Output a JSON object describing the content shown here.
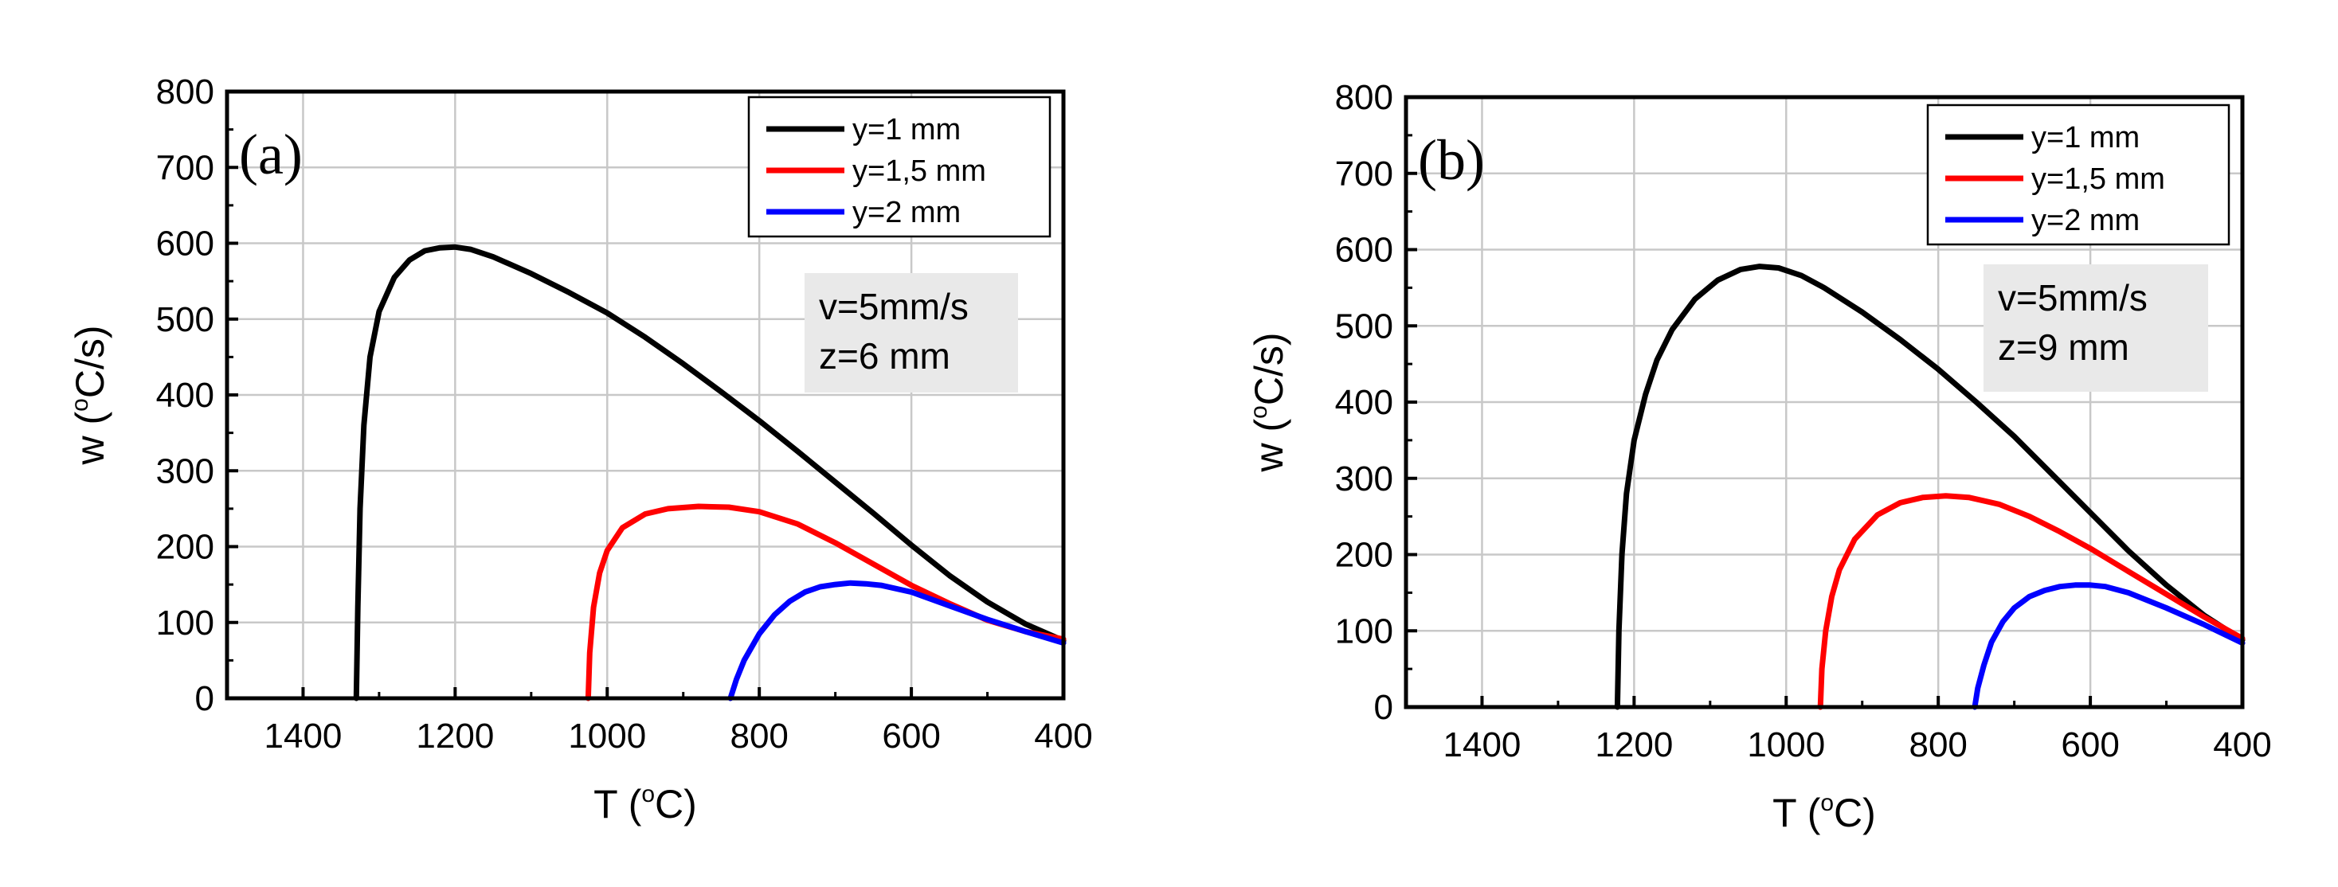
{
  "chart_data": [
    {
      "type": "line",
      "panel_label": "(a)",
      "xlabel": "T (",
      "xlabel_sup": "o",
      "xlabel_unit": "C)",
      "ylabel": "w (",
      "ylabel_sup": "o",
      "ylabel_unit": "C/s)",
      "xlim": [
        1500,
        400
      ],
      "ylim": [
        0,
        800
      ],
      "xticks": [
        "1400",
        "1200",
        "1000",
        "800",
        "600",
        "400"
      ],
      "xtick_values": [
        1400,
        1200,
        1000,
        800,
        600,
        400
      ],
      "yticks": [
        "0",
        "100",
        "200",
        "300",
        "400",
        "500",
        "600",
        "700",
        "800"
      ],
      "ytick_values": [
        0,
        100,
        200,
        300,
        400,
        500,
        600,
        700,
        800
      ],
      "grid": true,
      "legend_position": "top-right",
      "annotation": [
        "v=5mm/s",
        "z=6 mm"
      ],
      "series": [
        {
          "name": "y=1 mm",
          "color": "#000000",
          "x": [
            1330,
            1328,
            1325,
            1320,
            1312,
            1300,
            1280,
            1260,
            1240,
            1220,
            1200,
            1180,
            1150,
            1100,
            1050,
            1000,
            950,
            900,
            850,
            800,
            750,
            700,
            650,
            600,
            550,
            500,
            450,
            400
          ],
          "y": [
            0,
            120,
            250,
            360,
            450,
            510,
            555,
            578,
            590,
            594,
            595,
            592,
            582,
            560,
            535,
            508,
            476,
            441,
            404,
            366,
            326,
            285,
            244,
            202,
            162,
            127,
            98,
            76
          ]
        },
        {
          "name": "y=1,5 mm",
          "color": "#ff0000",
          "x": [
            1025,
            1023,
            1018,
            1010,
            1000,
            980,
            950,
            920,
            880,
            840,
            800,
            750,
            700,
            650,
            600,
            550,
            500,
            450,
            400
          ],
          "y": [
            0,
            60,
            120,
            165,
            195,
            225,
            243,
            250,
            253,
            252,
            246,
            230,
            205,
            177,
            149,
            125,
            103,
            88,
            78
          ]
        },
        {
          "name": "y=2 mm",
          "color": "#0000ff",
          "x": [
            838,
            830,
            820,
            800,
            780,
            760,
            740,
            720,
            700,
            680,
            660,
            640,
            600,
            550,
            500,
            450,
            400
          ],
          "y": [
            0,
            25,
            50,
            85,
            110,
            128,
            140,
            147,
            150,
            152,
            151,
            149,
            140,
            122,
            104,
            88,
            73
          ]
        }
      ]
    },
    {
      "type": "line",
      "panel_label": "(b)",
      "xlabel": "T (",
      "xlabel_sup": "o",
      "xlabel_unit": "C)",
      "ylabel": "w (",
      "ylabel_sup": "o",
      "ylabel_unit": "C/s)",
      "xlim": [
        1500,
        400
      ],
      "ylim": [
        0,
        800
      ],
      "xticks": [
        "1400",
        "1200",
        "1000",
        "800",
        "600",
        "400"
      ],
      "xtick_values": [
        1400,
        1200,
        1000,
        800,
        600,
        400
      ],
      "yticks": [
        "0",
        "100",
        "200",
        "300",
        "400",
        "500",
        "600",
        "700",
        "800"
      ],
      "ytick_values": [
        0,
        100,
        200,
        300,
        400,
        500,
        600,
        700,
        800
      ],
      "grid": true,
      "legend_position": "top-right",
      "annotation": [
        "v=5mm/s",
        "z=9 mm"
      ],
      "series": [
        {
          "name": "y=1 mm",
          "color": "#000000",
          "x": [
            1222,
            1220,
            1216,
            1210,
            1200,
            1185,
            1170,
            1150,
            1120,
            1090,
            1060,
            1035,
            1010,
            980,
            950,
            900,
            850,
            800,
            750,
            700,
            650,
            600,
            550,
            500,
            450,
            400
          ],
          "y": [
            0,
            100,
            200,
            280,
            350,
            410,
            455,
            495,
            535,
            560,
            574,
            578,
            576,
            566,
            550,
            518,
            482,
            443,
            400,
            355,
            305,
            255,
            205,
            160,
            120,
            88
          ]
        },
        {
          "name": "y=1,5 mm",
          "color": "#ff0000",
          "x": [
            955,
            953,
            948,
            940,
            930,
            910,
            880,
            850,
            820,
            790,
            760,
            720,
            680,
            640,
            600,
            550,
            500,
            450,
            400
          ],
          "y": [
            0,
            50,
            100,
            145,
            180,
            220,
            252,
            268,
            275,
            277,
            275,
            266,
            250,
            230,
            208,
            178,
            148,
            118,
            90
          ]
        },
        {
          "name": "y=2 mm",
          "color": "#0000ff",
          "x": [
            752,
            748,
            740,
            730,
            715,
            700,
            680,
            660,
            640,
            620,
            600,
            580,
            550,
            500,
            450,
            400
          ],
          "y": [
            0,
            25,
            55,
            85,
            112,
            130,
            145,
            153,
            158,
            160,
            160,
            158,
            150,
            130,
            108,
            84
          ]
        }
      ]
    }
  ]
}
